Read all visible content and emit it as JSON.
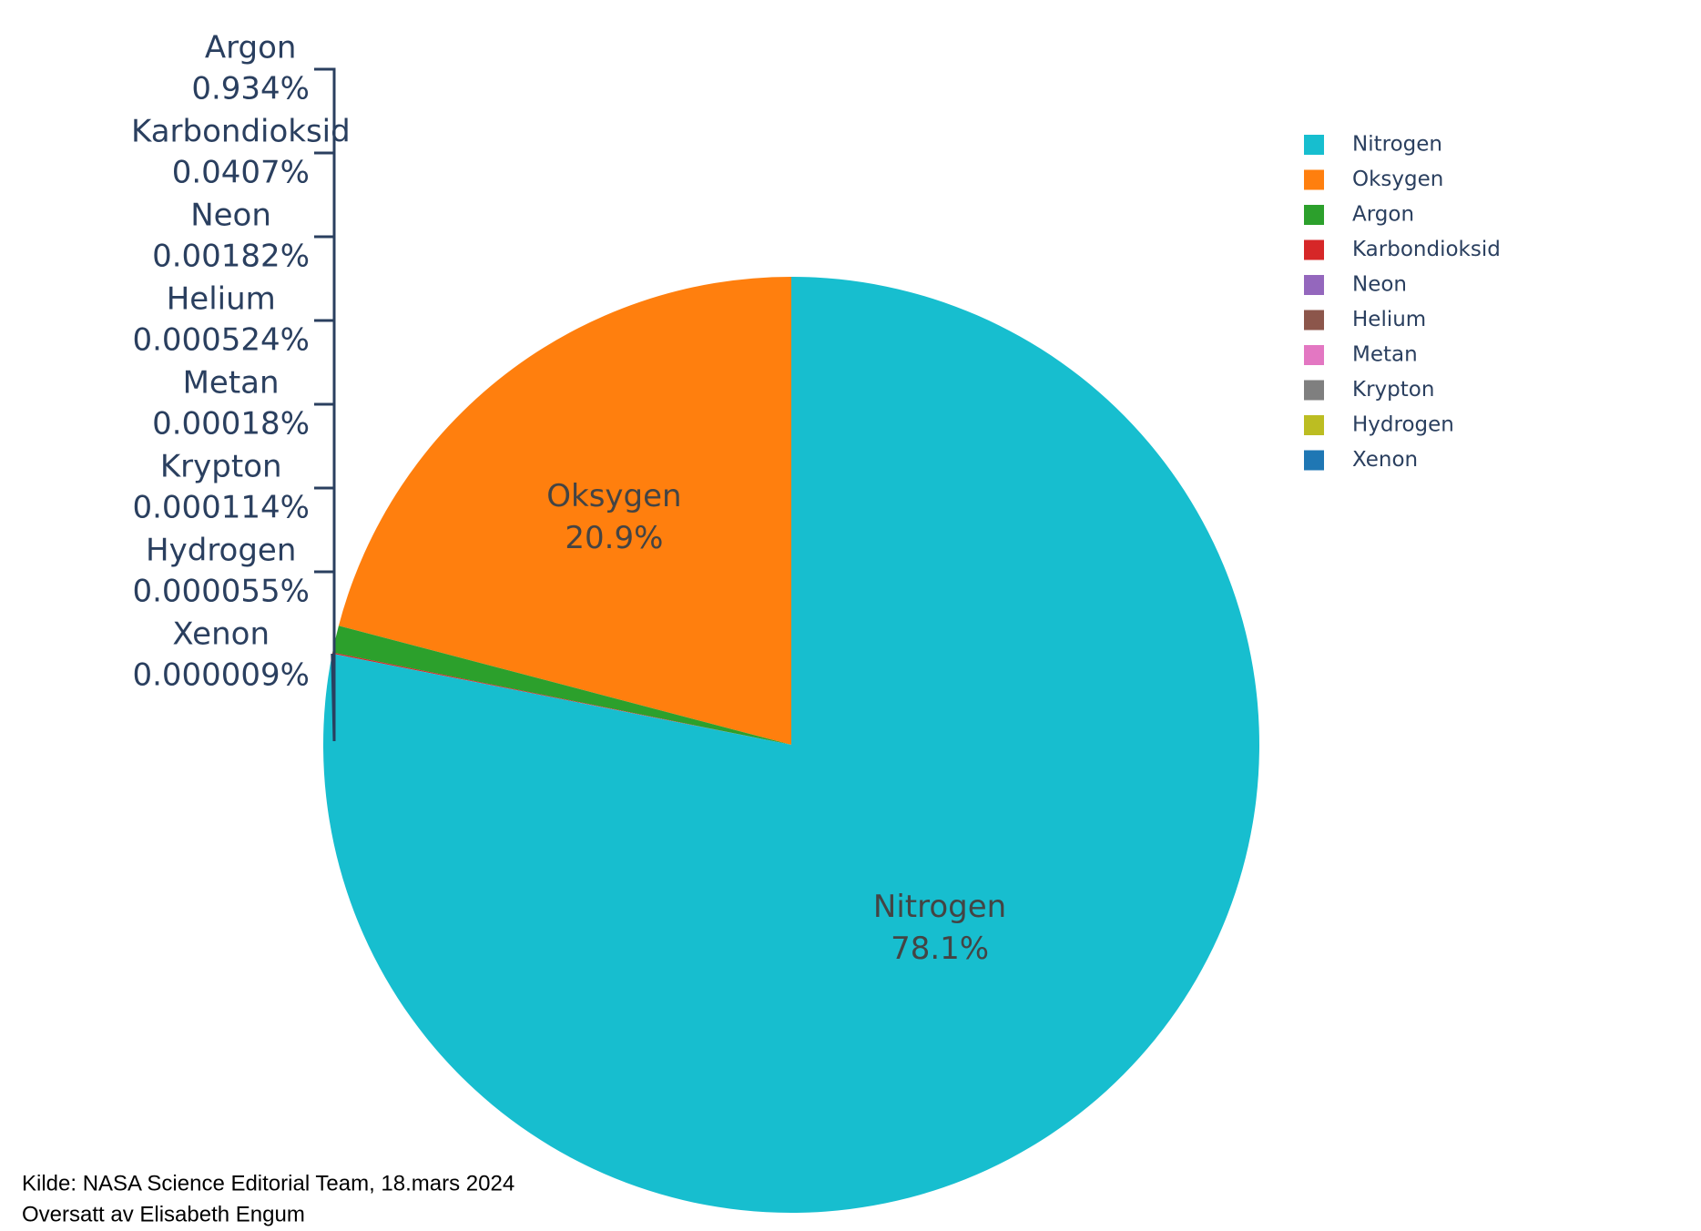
{
  "chart_data": {
    "type": "pie",
    "categories": [
      "Nitrogen",
      "Oksygen",
      "Argon",
      "Karbondioksid",
      "Neon",
      "Helium",
      "Metan",
      "Krypton",
      "Hydrogen",
      "Xenon"
    ],
    "values": [
      78.1,
      20.9,
      0.934,
      0.0407,
      0.00182,
      0.000524,
      0.00018,
      0.000114,
      5.5e-05,
      9e-06
    ],
    "value_labels": [
      "78.1%",
      "20.9%",
      "0.934%",
      "0.0407%",
      "0.00182%",
      "0.000524%",
      "0.00018%",
      "0.000114%",
      "0.000055%",
      "0.000009%"
    ],
    "colors": [
      "#17becf",
      "#ff7f0e",
      "#2ca02c",
      "#d62728",
      "#9467bd",
      "#8c564b",
      "#e377c2",
      "#7f7f7f",
      "#bcbd22",
      "#1f77b4"
    ],
    "legend": "top-right",
    "source": [
      "Kilde: NASA Science Editorial Team, 18.mars 2024",
      "Oversatt av Elisabeth Engum"
    ]
  }
}
